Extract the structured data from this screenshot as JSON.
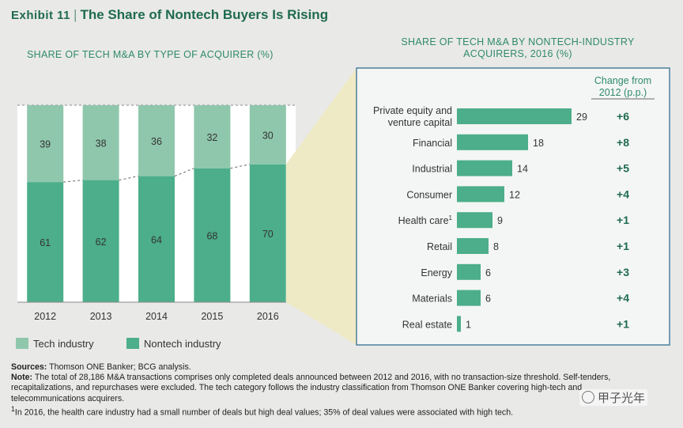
{
  "header": {
    "exhibit": "Exhibit 11",
    "separator": "|",
    "title": "The Share of Nontech Buyers Is Rising"
  },
  "colors": {
    "nontech": "#4cae8a",
    "tech": "#8fc7ac",
    "title": "#1f6b4f",
    "subtitle": "#2f8a6a",
    "panel_bg": "#f4f6f5",
    "panel_border": "#4c7f9a",
    "callout": "#eeeac6"
  },
  "chart_data": [
    {
      "type": "bar",
      "stacked": true,
      "title": "SHARE OF TECH M&A BY TYPE OF ACQUIRER (%)",
      "categories": [
        "2012",
        "2013",
        "2014",
        "2015",
        "2016"
      ],
      "series": [
        {
          "name": "Nontech industry",
          "values": [
            61,
            62,
            64,
            68,
            70
          ]
        },
        {
          "name": "Tech industry",
          "values": [
            39,
            38,
            36,
            32,
            30
          ]
        }
      ],
      "ylim": [
        0,
        100
      ],
      "legend": [
        "Tech industry",
        "Nontech industry"
      ],
      "legend_position": "bottom-left"
    },
    {
      "type": "bar",
      "orientation": "horizontal",
      "title": "SHARE OF TECH M&A BY NONTECH-INDUSTRY ACQUIRERS, 2016 (%)",
      "categories": [
        "Private equity and venture capital",
        "Financial",
        "Industrial",
        "Consumer",
        "Health care",
        "Retail",
        "Energy",
        "Materials",
        "Real estate"
      ],
      "values": [
        29,
        18,
        14,
        12,
        9,
        8,
        6,
        6,
        1
      ],
      "footnote_marks": {
        "Health care": "1"
      },
      "change_header": "Change from 2012 (p.p.)",
      "change_from_2012": [
        "+6",
        "+8",
        "+5",
        "+4",
        "+1",
        "+1",
        "+3",
        "+4",
        "+1"
      ]
    }
  ],
  "notes": {
    "sources_label": "Sources:",
    "sources_text": "Thomson ONE Banker; BCG analysis.",
    "note_label": "Note:",
    "note_text": "The total of 28,186 M&A transactions comprises only completed deals announced between 2012 and 2016, with no transaction-size threshold. Self-tenders, recapitalizations, and repurchases were excluded. The tech category follows the industry classification from Thomson ONE Banker covering high-tech and telecommunications acquirers.",
    "footnote_mark": "1",
    "footnote_text": "In 2016, the health care industry had a small number of deals but high deal values; 35% of deal values were associated with high tech."
  },
  "watermark": "甲子光年"
}
